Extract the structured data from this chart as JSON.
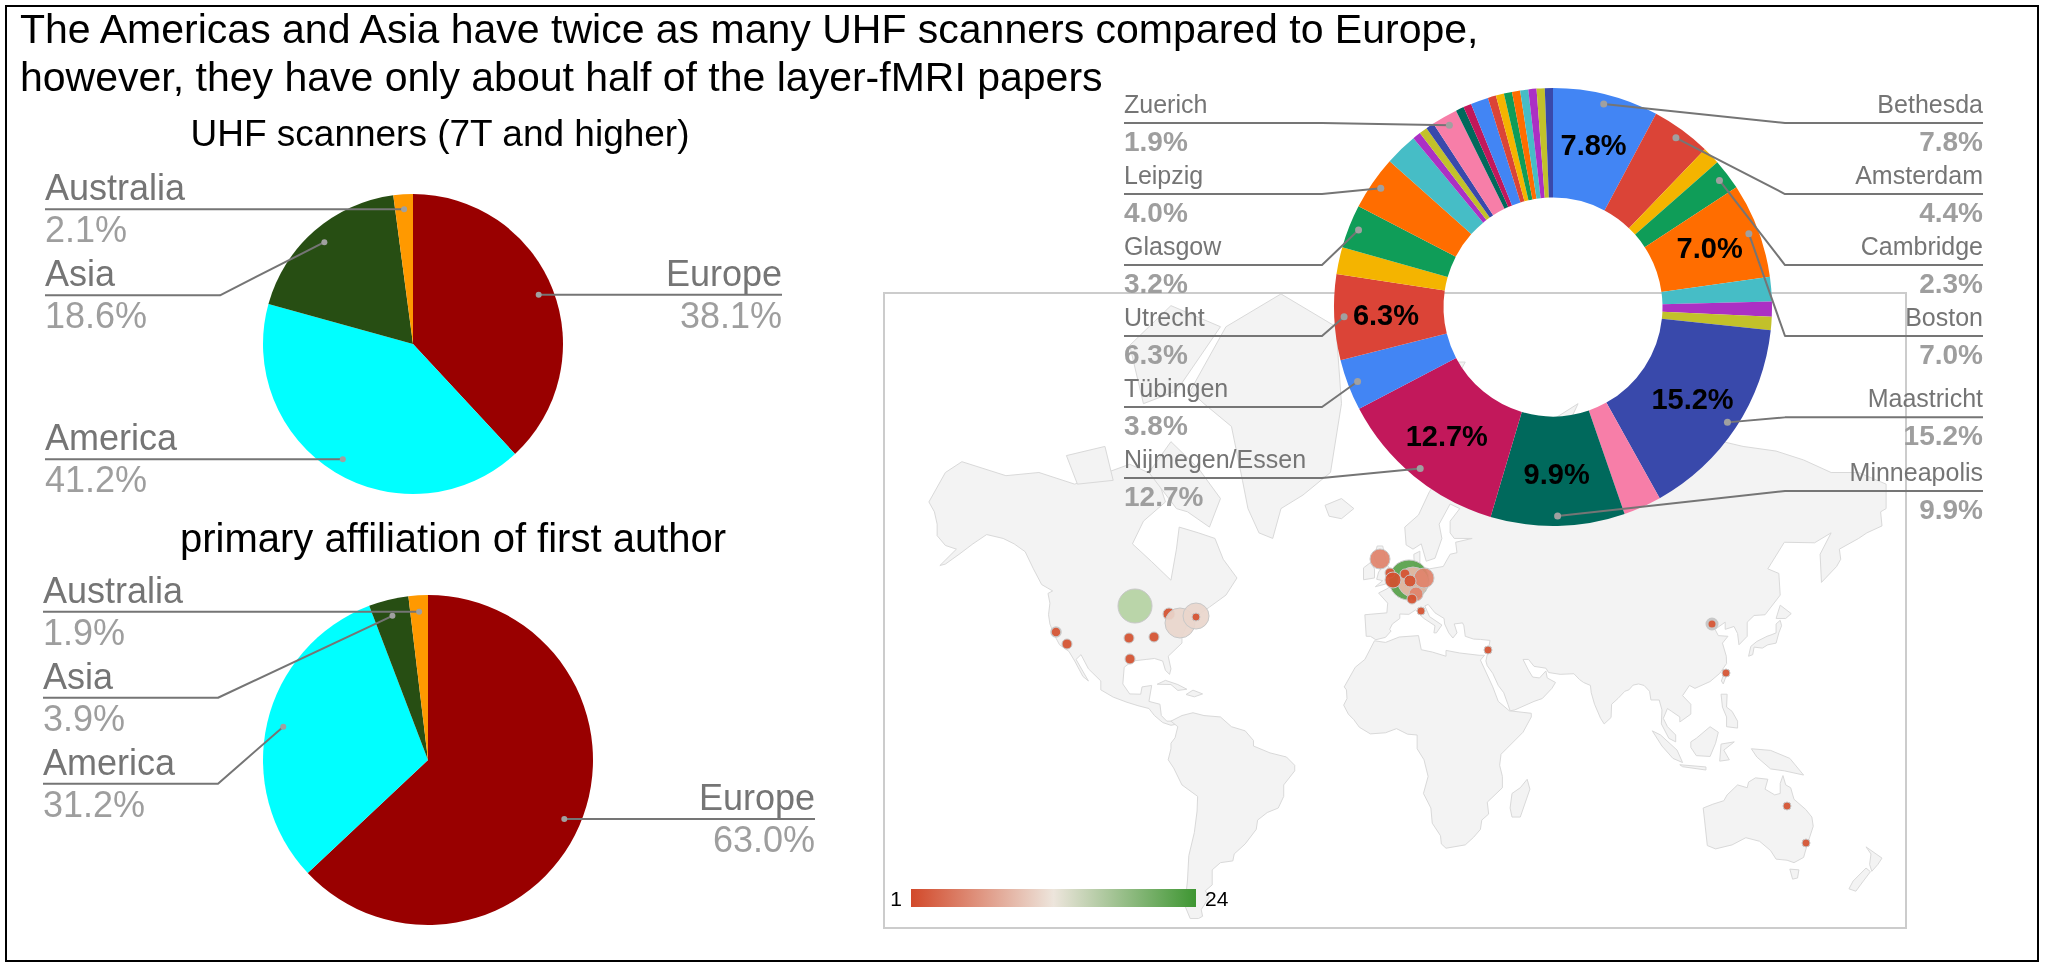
{
  "chart_data": [
    {
      "type": "pie",
      "title": "The Americas and Asia have twice as many UHF scanners compared to Europe, however, they have only about half of the layer-fMRI papers",
      "subtitle": "UHF scanners (7T and higher)",
      "categories": [
        "Europe",
        "America",
        "Asia",
        "Australia"
      ],
      "values": [
        38.1,
        41.2,
        18.6,
        2.1
      ],
      "colors": [
        "#990000",
        "#00ffff",
        "#274e13",
        "#ff9900"
      ],
      "value_labels": [
        "38.1%",
        "41.2%",
        "18.6%",
        "2.1%"
      ]
    },
    {
      "type": "pie",
      "title": "primary affiliation of first author",
      "categories": [
        "Europe",
        "America",
        "Asia",
        "Australia"
      ],
      "values": [
        63.0,
        31.2,
        3.9,
        1.9
      ],
      "colors": [
        "#990000",
        "#00ffff",
        "#274e13",
        "#ff9900"
      ],
      "value_labels": [
        "63.0%",
        "31.2%",
        "3.9%",
        "1.9%"
      ]
    },
    {
      "type": "donut",
      "categories": [
        "Bethesda",
        "Amsterdam",
        null,
        "Cambridge",
        "Boston",
        null,
        null,
        null,
        "Maastricht",
        null,
        "Minneapolis",
        "Nijmegen/Essen",
        "Tübingen",
        "Utrecht",
        null,
        "Glasgow",
        "Leipzig",
        null,
        null,
        null,
        null,
        "Zuerich",
        null,
        null,
        null,
        null,
        null,
        null,
        null,
        null,
        null,
        null,
        null
      ],
      "values": [
        7.8,
        4.4,
        1.3,
        2.3,
        7.0,
        1.8,
        1.1,
        1.0,
        15.2,
        2.8,
        9.9,
        12.7,
        3.8,
        6.3,
        2.0,
        3.2,
        4.0,
        2.4,
        0.6,
        0.6,
        0.6,
        1.9,
        0.6,
        0.6,
        1.3,
        0.6,
        0.6,
        0.6,
        0.6,
        0.6,
        0.6,
        0.6,
        0.6
      ],
      "colors": [
        "#4285f4",
        "#db4437",
        "#f4b400",
        "#0f9d58",
        "#ff6d00",
        "#46bdc6",
        "#ab30c4",
        "#c2c12a",
        "#3949ab",
        "#f77ea8",
        "#00695c",
        "#c2185b",
        "#4285f4",
        "#db4437",
        "#f4b400",
        "#0f9d58",
        "#ff6d00",
        "#46bdc6",
        "#ab30c4",
        "#c2c12a",
        "#3949ab",
        "#f77ea8",
        "#00695c",
        "#c2185b",
        "#4285f4",
        "#db4437",
        "#f4b400",
        "#0f9d58",
        "#ff6d00",
        "#46bdc6",
        "#ab30c4",
        "#c2c12a",
        "#3949ab"
      ],
      "value_labels": [
        "7.8%",
        "4.4%",
        null,
        "2.3%",
        "7.0%",
        null,
        null,
        null,
        "15.2%",
        null,
        "9.9%",
        "12.7%",
        "3.8%",
        "6.3%",
        null,
        "3.2%",
        "4.0%",
        null,
        null,
        null,
        null,
        "1.9%",
        null,
        null,
        null,
        null,
        null,
        null,
        null,
        null,
        null,
        null,
        null
      ]
    },
    {
      "type": "other",
      "annotations": [
        "1",
        "24"
      ]
    }
  ]
}
